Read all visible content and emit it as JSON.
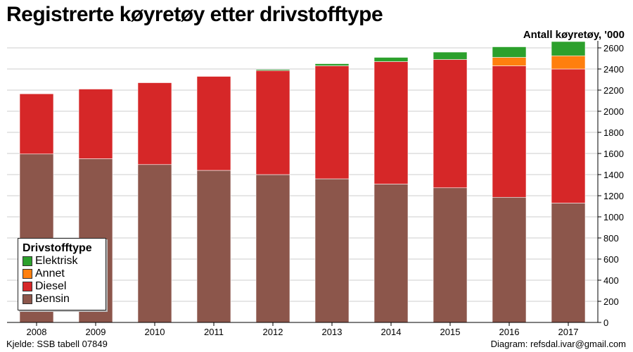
{
  "header": {
    "title": "Registrerte køyretøy etter drivstofftype",
    "unit_label": "Antall køyretøy, '000"
  },
  "footer": {
    "source": "Kjelde: SSB tabell 07849",
    "credit": "Diagram: refsdal.ivar@gmail.com"
  },
  "legend": {
    "title": "Drivstofftype",
    "items": [
      {
        "label": "Elektrisk",
        "color": "#2ca02c"
      },
      {
        "label": "Annet",
        "color": "#ff7f0e"
      },
      {
        "label": "Diesel",
        "color": "#d62728"
      },
      {
        "label": "Bensin",
        "color": "#8c564b"
      }
    ]
  },
  "chart_data": {
    "type": "bar",
    "stacked": true,
    "title": "Registrerte køyretøy etter drivstofftype",
    "ylabel": "Antall køyretøy, '000",
    "xlabel": "",
    "y_axis_side": "right",
    "legend_position": "bottom-left",
    "grid": true,
    "ylim": [
      0,
      2650
    ],
    "yticks": [
      0,
      200,
      400,
      600,
      800,
      1000,
      1200,
      1400,
      1600,
      1800,
      2000,
      2200,
      2400,
      2600
    ],
    "categories": [
      "2008",
      "2009",
      "2010",
      "2011",
      "2012",
      "2013",
      "2014",
      "2015",
      "2016",
      "2017"
    ],
    "series": [
      {
        "name": "Bensin",
        "color": "#8c564b",
        "values": [
          1595,
          1550,
          1495,
          1440,
          1400,
          1360,
          1310,
          1275,
          1185,
          1130
        ]
      },
      {
        "name": "Diesel",
        "color": "#d62728",
        "values": [
          570,
          660,
          775,
          890,
          985,
          1070,
          1160,
          1215,
          1245,
          1270
        ]
      },
      {
        "name": "Annet",
        "color": "#ff7f0e",
        "values": [
          0,
          0,
          0,
          0,
          0,
          0,
          0,
          0,
          80,
          125
        ]
      },
      {
        "name": "Elektrisk",
        "color": "#2ca02c",
        "values": [
          0,
          0,
          0,
          0,
          10,
          20,
          40,
          70,
          100,
          135
        ]
      }
    ]
  }
}
